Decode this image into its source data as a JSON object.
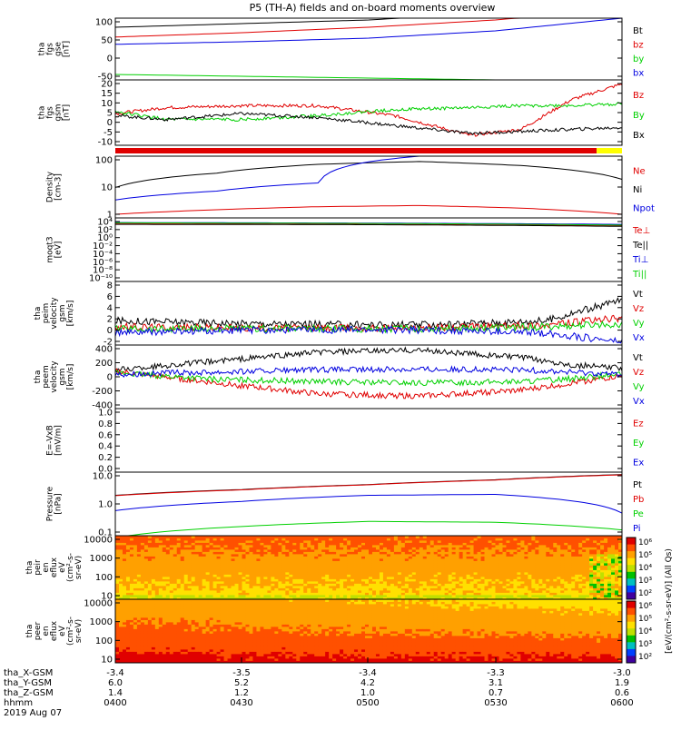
{
  "title": "P5 (TH-A) fields and on-board moments overview",
  "colors": {
    "black": "#000000",
    "red": "#e00000",
    "green": "#00d000",
    "blue": "#0000e0",
    "yellow": "#ffff00"
  },
  "panels": [
    {
      "id": "fgs_gse",
      "ylabel_lines": [
        "tha",
        "fgs",
        "gse",
        "[nT]"
      ],
      "scale": "linear",
      "ytick_labels": [
        "100",
        "50",
        "0",
        "-50"
      ],
      "legend": [
        {
          "text": "Bt",
          "color": "black"
        },
        {
          "text": "bz",
          "color": "red"
        },
        {
          "text": "by",
          "color": "green"
        },
        {
          "text": "bx",
          "color": "blue"
        }
      ]
    },
    {
      "id": "fgs_gsm",
      "ylabel_lines": [
        "tha",
        "fgs",
        "gsm",
        "[nT]"
      ],
      "scale": "linear",
      "ytick_labels": [
        "20",
        "15",
        "10",
        "5",
        "0",
        "-5",
        "-10"
      ],
      "legend": [
        {
          "text": "Bz",
          "color": "red"
        },
        {
          "text": "By",
          "color": "green"
        },
        {
          "text": "Bx",
          "color": "black"
        }
      ]
    },
    {
      "id": "density",
      "ylabel_lines": [
        "Density",
        "[cm-3]"
      ],
      "scale": "log",
      "ytick_labels": [
        "100",
        "10",
        "1"
      ],
      "legend": [
        {
          "text": "Ne",
          "color": "red"
        },
        {
          "text": "Ni",
          "color": "black"
        },
        {
          "text": "Npot",
          "color": "blue"
        }
      ]
    },
    {
      "id": "temperature",
      "ylabel_lines": [
        "moqt3",
        "[eV]"
      ],
      "scale": "log",
      "ytick_labels": [
        "10⁴",
        "10²",
        "10⁰",
        "10⁻²",
        "10⁻⁴",
        "10⁻⁶",
        "10⁻⁸",
        "10⁻¹⁰"
      ],
      "legend": [
        {
          "text": "Te⊥",
          "color": "red"
        },
        {
          "text": "Te||",
          "color": "black"
        },
        {
          "text": "Ti⊥",
          "color": "blue"
        },
        {
          "text": "Ti||",
          "color": "green"
        }
      ]
    },
    {
      "id": "efi_velocity",
      "ylabel_lines": [
        "tha",
        "peim",
        "velocity",
        "gsm",
        "[km/s]"
      ],
      "scale": "linear",
      "ytick_labels": [
        "8",
        "6",
        "4",
        "2",
        "0",
        "-2"
      ],
      "legend": [
        {
          "text": "Vt",
          "color": "black"
        },
        {
          "text": "Vz",
          "color": "red"
        },
        {
          "text": "Vy",
          "color": "green"
        },
        {
          "text": "Vx",
          "color": "blue"
        }
      ]
    },
    {
      "id": "peem_velocity",
      "ylabel_lines": [
        "tha",
        "peem",
        "velocity",
        "gsm",
        "[km/s]"
      ],
      "scale": "linear",
      "ytick_labels": [
        "400",
        "200",
        "0",
        "-200",
        "-400"
      ],
      "legend": [
        {
          "text": "Vt",
          "color": "black"
        },
        {
          "text": "Vz",
          "color": "red"
        },
        {
          "text": "Vy",
          "color": "green"
        },
        {
          "text": "Vx",
          "color": "blue"
        }
      ]
    },
    {
      "id": "efield",
      "ylabel_lines": [
        "E=-VxB",
        "[mV/m]"
      ],
      "scale": "linear",
      "ytick_labels": [
        "1.0",
        "0.8",
        "0.6",
        "0.4",
        "0.2",
        "0.0"
      ],
      "legend": [
        {
          "text": "Ez",
          "color": "red"
        },
        {
          "text": "Ey",
          "color": "green"
        },
        {
          "text": "Ex",
          "color": "blue"
        }
      ]
    },
    {
      "id": "pressure",
      "ylabel_lines": [
        "Pressure",
        "[nPa]"
      ],
      "scale": "log",
      "ytick_labels": [
        "10.0",
        "1.0",
        "0.1"
      ],
      "legend": [
        {
          "text": "Pt",
          "color": "black"
        },
        {
          "text": "Pb",
          "color": "red"
        },
        {
          "text": "Pe",
          "color": "green"
        },
        {
          "text": "Pi",
          "color": "blue"
        }
      ]
    },
    {
      "id": "peir_spec",
      "ylabel_lines": [
        "tha",
        "peir",
        "en",
        "eflux",
        "eV",
        "(cm²-s-",
        "sr-eV)"
      ],
      "scale": "log",
      "ytick_labels": [
        "10000",
        "1000",
        "100",
        "10"
      ]
    },
    {
      "id": "peer_spec",
      "ylabel_lines": [
        "tha",
        "peer",
        "en",
        "eflux",
        "eV",
        "(cm²-s-",
        "sr-eV)"
      ],
      "scale": "log",
      "ytick_labels": [
        "10000",
        "1000",
        "100",
        "10"
      ]
    }
  ],
  "colorbar": {
    "label": "[eV/(cm²-s-sr-eV)] (All Qs)",
    "ticks_top": [
      "10⁶",
      "10⁵",
      "10⁴",
      "10³",
      "10²"
    ],
    "ticks_bottom": [
      "10⁶",
      "10⁵",
      "10⁴",
      "10³",
      "10²"
    ]
  },
  "chart_data": {
    "type": "line",
    "title": "P5 (TH-A) fields and on-board moments overview",
    "x_axis": {
      "rows": [
        {
          "label": "tha_X-GSM",
          "values": [
            "-3.4",
            "-3.5",
            "-3.4",
            "-3.3",
            "-3.0"
          ]
        },
        {
          "label": "tha_Y-GSM",
          "values": [
            "6.0",
            "5.2",
            "4.2",
            "3.1",
            "1.9"
          ]
        },
        {
          "label": "tha_Z-GSM",
          "values": [
            "1.4",
            "1.2",
            "1.0",
            "0.7",
            "0.6"
          ]
        },
        {
          "label": "hhmm",
          "values": [
            "0400",
            "0430",
            "0500",
            "0530",
            "0600"
          ]
        }
      ],
      "date": "2019 Aug 07",
      "time_range": [
        "0400",
        "0600"
      ]
    },
    "series_by_panel": {
      "fgs_gse": {
        "t": [
          0,
          0.25,
          0.5,
          0.75,
          1.0
        ],
        "Bt": [
          85,
          95,
          105,
          125,
          150
        ],
        "bz": [
          58,
          70,
          85,
          105,
          135
        ],
        "by": [
          -45,
          -50,
          -55,
          -60,
          -70
        ],
        "bx": [
          38,
          45,
          55,
          75,
          110
        ]
      },
      "fgs_gsm": {
        "t": [
          0,
          0.1,
          0.25,
          0.4,
          0.55,
          0.7,
          0.8,
          0.9,
          1.0
        ],
        "Bz": [
          3,
          6,
          7,
          7,
          2,
          -8,
          -5,
          10,
          18
        ],
        "By": [
          4,
          0,
          0,
          2,
          5,
          6,
          7,
          7,
          8
        ],
        "Bx": [
          2,
          0,
          3,
          1,
          -3,
          -7,
          -6,
          -5,
          -4
        ]
      },
      "density": {
        "t": [
          0,
          0.2,
          0.4,
          0.6,
          0.8,
          1.0
        ],
        "Ne": [
          0.3,
          0.5,
          0.7,
          0.8,
          0.6,
          0.3
        ],
        "Ni": [
          6,
          30,
          80,
          110,
          70,
          15
        ],
        "Npot": [
          1.5,
          4,
          10,
          200,
          200,
          200
        ]
      },
      "temperature": {
        "t": [
          0,
          0.5,
          1.0
        ],
        "Te_perp": [
          5000,
          3000,
          1500
        ],
        "Te_par": [
          3000,
          2500,
          1000
        ],
        "Ti_perp": [
          8000,
          6000,
          3000
        ],
        "Ti_par": [
          7000,
          5000,
          2000
        ]
      },
      "efi_velocity": {
        "t": [
          0,
          0.3,
          0.6,
          0.85,
          1.0
        ],
        "Vt": [
          1.5,
          1.0,
          0.8,
          1.5,
          5
        ],
        "Vz": [
          0.5,
          0.3,
          0.3,
          0.8,
          2
        ],
        "Vy": [
          0.2,
          0.2,
          0.2,
          0.5,
          1
        ],
        "Vx": [
          -0.5,
          0,
          0,
          -0.5,
          -2
        ]
      },
      "peem_velocity": {
        "t": [
          0,
          0.2,
          0.4,
          0.6,
          0.8,
          0.9,
          1.0
        ],
        "Vt": [
          80,
          200,
          320,
          350,
          250,
          150,
          100
        ],
        "Vz": [
          60,
          -100,
          -250,
          -280,
          -200,
          -100,
          0
        ],
        "Vy": [
          40,
          -50,
          -80,
          -100,
          -80,
          -40,
          20
        ],
        "Vx": [
          20,
          50,
          80,
          90,
          80,
          50,
          20
        ]
      },
      "pressure": {
        "t": [
          0,
          0.25,
          0.5,
          0.75,
          1.0
        ],
        "Pt": [
          2.5,
          5,
          9,
          16,
          30
        ],
        "Pb": [
          2.4,
          4.8,
          8.8,
          15.5,
          29
        ],
        "Pe": [
          0.015,
          0.06,
          0.11,
          0.1,
          0.04
        ],
        "Pi": [
          0.4,
          1.2,
          2.5,
          2.8,
          0.3
        ]
      }
    }
  }
}
